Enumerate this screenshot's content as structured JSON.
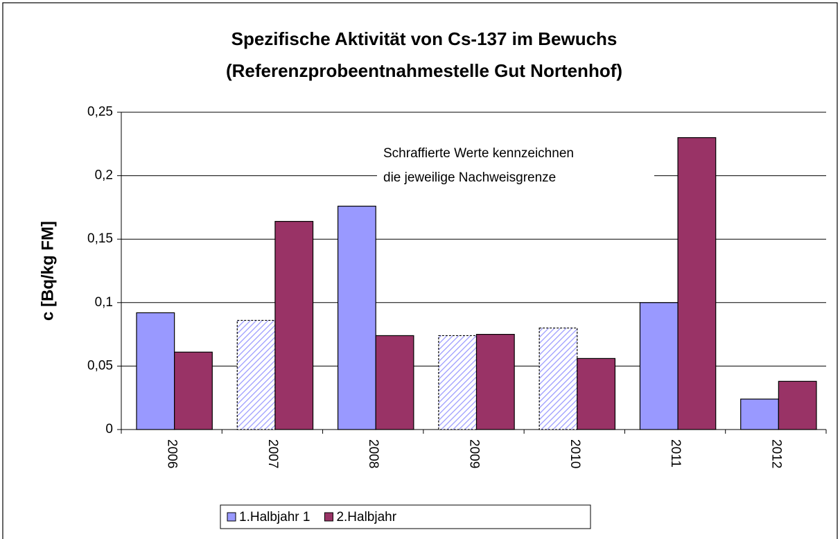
{
  "chart_data": {
    "type": "bar",
    "title": [
      "Spezifische Aktivität von Cs-137 im Bewuchs",
      "(Referenzprobeentnahmestelle Gut Nortenhof)"
    ],
    "y_label": "c [Bq/kg FM]",
    "annotation": [
      "Schraffierte Werte kennzeichnen",
      "die jeweilige Nachweisgrenze"
    ],
    "categories": [
      "2006",
      "2007",
      "2008",
      "2009",
      "2010",
      "2011",
      "2012"
    ],
    "series": [
      {
        "name": "1.Halbjahr 1",
        "color": "#9999ff",
        "values": [
          0.092,
          0.086,
          0.176,
          0.074,
          0.08,
          0.1,
          0.024
        ],
        "hatched": [
          false,
          true,
          false,
          true,
          true,
          false,
          false
        ]
      },
      {
        "name": "2.Halbjahr",
        "color": "#993366",
        "values": [
          0.061,
          0.164,
          0.074,
          0.075,
          0.056,
          0.23,
          0.038
        ]
      }
    ],
    "ylim": [
      0,
      0.25
    ],
    "yticks": [
      0,
      {
        "value": 0.05,
        "label": "0,05"
      },
      {
        "value": 0.1,
        "label": "0,1"
      },
      {
        "value": 0.15,
        "label": "0,15"
      },
      {
        "value": 0.2,
        "label": "0,2"
      },
      {
        "value": 0.25,
        "label": "0,25"
      }
    ],
    "grid": true,
    "legend": "bottom"
  }
}
